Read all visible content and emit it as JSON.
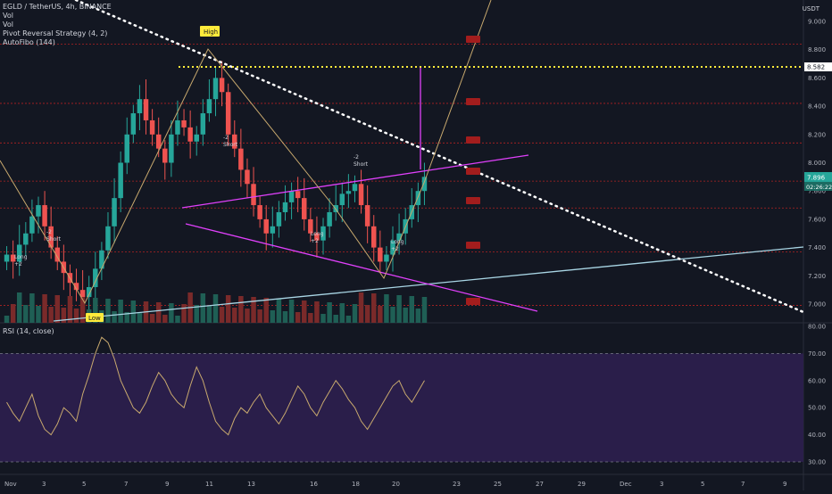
{
  "legend": {
    "symbol": "EGLD / TetherUS, 4h, BINANCE",
    "vol1": "Vol",
    "vol2": "Vol",
    "strategy": "Pivot Reversal Strategy (4, 2)",
    "autofibo": "AutoFibo (144)"
  },
  "currency": "USDT",
  "rsi_label": "RSI (14, close)",
  "colors": {
    "background": "#131722",
    "up": "#26a69a",
    "down": "#ef5350",
    "fib_line": "#b22222",
    "trend_dotted": "#ffffff",
    "channel": "#e040fb",
    "support": "#a9d6e5",
    "zigzag": "#c8a96e",
    "level_yellow": "#ffeb3b",
    "rsi_band": "#2a1e4a",
    "rsi_line": "#c8a96e"
  },
  "chart_data": [
    {
      "type": "candlestick",
      "y_ticks": [
        "9.000",
        "8.800",
        "8.600",
        "8.400",
        "8.200",
        "8.000",
        "7.800",
        "7.600",
        "7.400",
        "7.200",
        "7.000"
      ],
      "ylim": [
        6.9,
        9.1
      ],
      "x_ticks": [
        "Nov",
        "3",
        "5",
        "7",
        "9",
        "11",
        "13",
        "16",
        "18",
        "20",
        "23",
        "25",
        "27",
        "29",
        "Dec",
        "3",
        "5",
        "7",
        "9"
      ],
      "last_price": "7.896",
      "countdown": "02:26:22",
      "yellow_level": "8.582",
      "fib_levels": [
        8.84,
        8.42,
        8.14,
        7.87,
        7.68,
        7.37,
        6.99
      ],
      "annotations": {
        "high_label": "High",
        "low_label": "Low",
        "short_1": [
          "-2",
          "Short"
        ],
        "long_1": [
          "Long",
          "+2"
        ],
        "short_2": [
          "-2",
          "Short"
        ],
        "long_2": [
          "Long",
          "+2"
        ],
        "short_3": [
          "-2",
          "Short"
        ],
        "long_3": [
          "Long",
          "+2"
        ],
        "long_4": [
          "Long",
          "+2"
        ]
      },
      "series": [
        {
          "name": "price",
          "close": [
            7.35,
            7.3,
            7.42,
            7.5,
            7.62,
            7.7,
            7.55,
            7.4,
            7.3,
            7.22,
            7.15,
            7.1,
            7.05,
            7.12,
            7.25,
            7.38,
            7.55,
            7.75,
            8.0,
            8.2,
            8.35,
            8.45,
            8.3,
            8.2,
            8.1,
            8.0,
            8.2,
            8.3,
            8.25,
            8.15,
            8.2,
            8.35,
            8.45,
            8.6,
            8.5,
            8.2,
            8.1,
            7.95,
            7.85,
            7.7,
            7.6,
            7.5,
            7.55,
            7.65,
            7.72,
            7.8,
            7.75,
            7.6,
            7.5,
            7.45,
            7.55,
            7.65,
            7.7,
            7.78,
            7.8,
            7.85,
            7.7,
            7.55,
            7.4,
            7.3,
            7.35,
            7.45,
            7.5,
            7.6,
            7.7,
            7.8,
            7.9
          ]
        },
        {
          "name": "RSI",
          "values": [
            52,
            48,
            45,
            50,
            55,
            47,
            42,
            40,
            44,
            50,
            48,
            45,
            55,
            62,
            70,
            76,
            74,
            68,
            60,
            55,
            50,
            48,
            52,
            58,
            63,
            60,
            55,
            52,
            50,
            58,
            65,
            60,
            52,
            45,
            42,
            40,
            46,
            50,
            48,
            52,
            55,
            50,
            47,
            44,
            48,
            53,
            58,
            55,
            50,
            47,
            52,
            56,
            60,
            57,
            53,
            50,
            45,
            42,
            46,
            50,
            54,
            58,
            60,
            55,
            52,
            56,
            60
          ]
        }
      ]
    },
    {
      "type": "line",
      "name": "RSI",
      "y_ticks": [
        "80.00",
        "70.00",
        "60.00",
        "50.00",
        "40.00",
        "30.00"
      ],
      "ylim": [
        28,
        82
      ],
      "band": [
        30,
        70
      ]
    }
  ]
}
